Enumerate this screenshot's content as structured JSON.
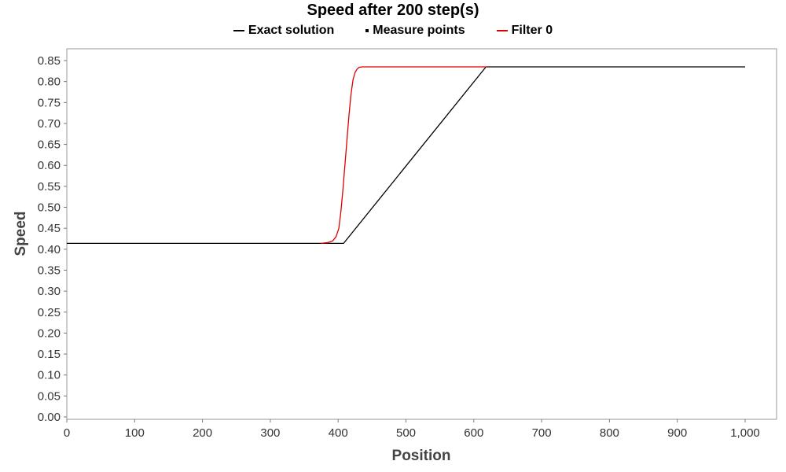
{
  "chart_data": {
    "type": "line",
    "title": "Speed after 200 step(s)",
    "xlabel": "Position",
    "ylabel": "Speed",
    "xlim": [
      0,
      1000
    ],
    "ylim": [
      0,
      0.85
    ],
    "xticks": [
      0,
      100,
      200,
      300,
      400,
      500,
      600,
      700,
      800,
      900,
      1000
    ],
    "xtick_labels": [
      "0",
      "100",
      "200",
      "300",
      "400",
      "500",
      "600",
      "700",
      "800",
      "900",
      "1,000"
    ],
    "yticks": [
      0,
      0.05,
      0.1,
      0.15,
      0.2,
      0.25,
      0.3,
      0.35,
      0.4,
      0.45,
      0.5,
      0.55,
      0.6,
      0.65,
      0.7,
      0.75,
      0.8,
      0.85
    ],
    "ytick_labels": [
      "0.00",
      "0.05",
      "0.10",
      "0.15",
      "0.20",
      "0.25",
      "0.30",
      "0.35",
      "0.40",
      "0.45",
      "0.50",
      "0.55",
      "0.60",
      "0.65",
      "0.70",
      "0.75",
      "0.80",
      "0.85"
    ],
    "grid": false,
    "legend_position": "top-center",
    "series": [
      {
        "name": "Exact solution",
        "color": "#000000",
        "style": "line",
        "x": [
          0,
          408,
          618,
          1000
        ],
        "y": [
          0.414,
          0.414,
          0.835,
          0.835
        ]
      },
      {
        "name": "Measure points",
        "color": "#000000",
        "style": "points",
        "x": [],
        "y": []
      },
      {
        "name": "Filter 0",
        "color": "#dd0000",
        "style": "line",
        "x": [
          375,
          385,
          392,
          397,
          401,
          404,
          407,
          410,
          413,
          416,
          419,
          422,
          425,
          428,
          431,
          436,
          445,
          620
        ],
        "y": [
          0.414,
          0.416,
          0.42,
          0.43,
          0.45,
          0.49,
          0.54,
          0.6,
          0.66,
          0.72,
          0.77,
          0.805,
          0.822,
          0.83,
          0.834,
          0.835,
          0.835,
          0.835
        ]
      }
    ]
  }
}
